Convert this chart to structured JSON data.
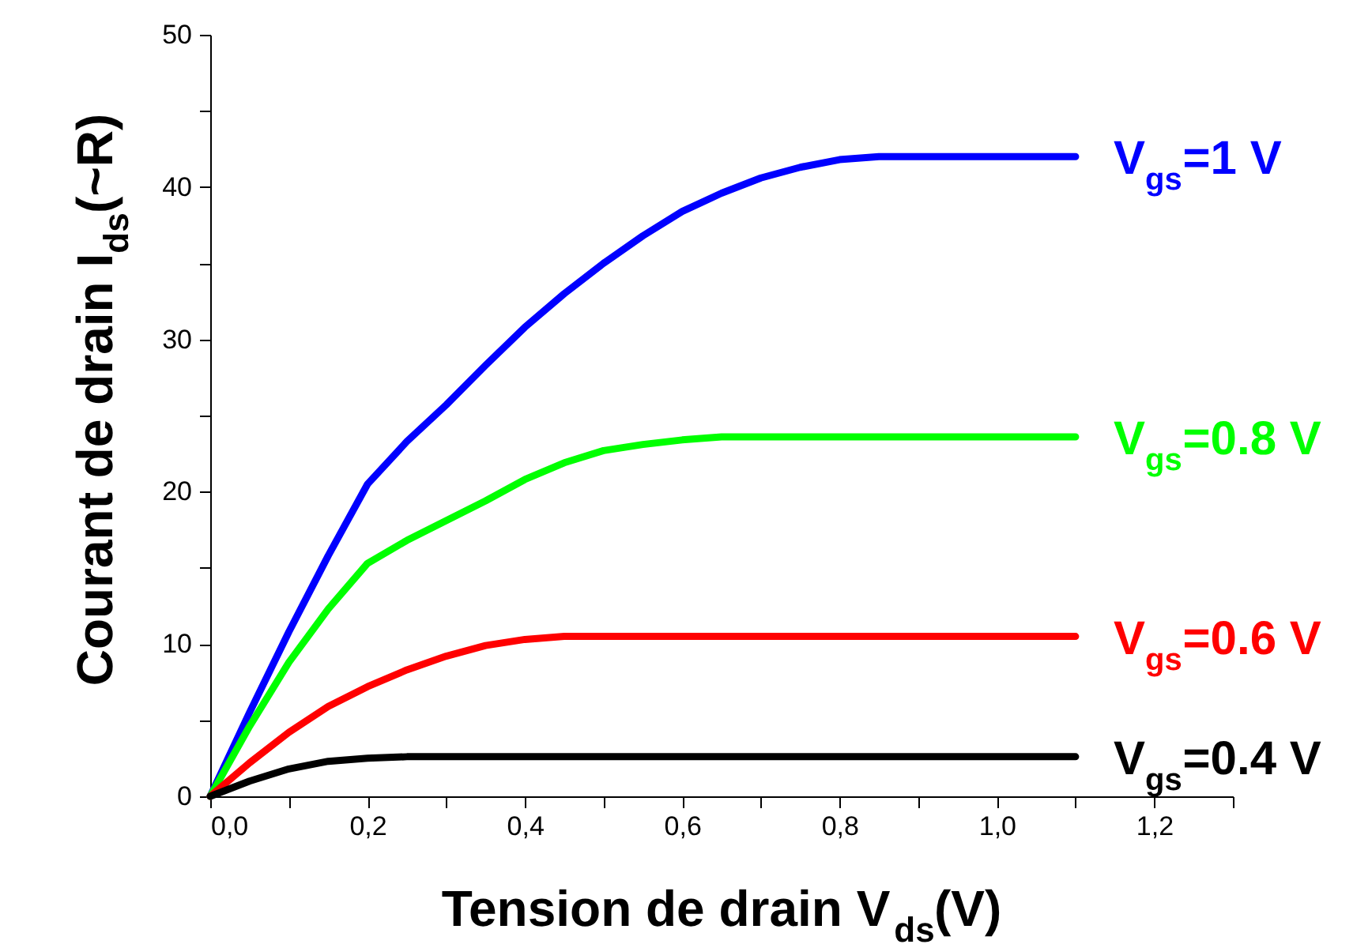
{
  "chart_data": {
    "type": "line",
    "xlabel": "Tension de drain V$_{ds}$(V)",
    "ylabel": "Courant de drain I$_{ds}$(~R)",
    "xlim": [
      0,
      1.3
    ],
    "ylim": [
      0,
      50
    ],
    "xticks": [
      {
        "value": 0,
        "label": "0,0"
      },
      {
        "value": 0.1,
        "label": null
      },
      {
        "value": 0.2,
        "label": "0,2"
      },
      {
        "value": 0.3,
        "label": null
      },
      {
        "value": 0.4,
        "label": "0,4"
      },
      {
        "value": 0.5,
        "label": null
      },
      {
        "value": 0.6,
        "label": "0,6"
      },
      {
        "value": 0.7,
        "label": null
      },
      {
        "value": 0.8,
        "label": "0,8"
      },
      {
        "value": 0.9,
        "label": null
      },
      {
        "value": 1.0,
        "label": "1,0"
      },
      {
        "value": 1.1,
        "label": null
      },
      {
        "value": 1.2,
        "label": "1,2"
      },
      {
        "value": 1.3,
        "label": null
      }
    ],
    "yticks": [
      0,
      {
        "value": 5,
        "label": null
      },
      10,
      {
        "value": 15,
        "label": null
      },
      20,
      {
        "value": 25,
        "label": null
      },
      30,
      {
        "value": 35,
        "label": null
      },
      40,
      {
        "value": 45,
        "label": null
      },
      50
    ],
    "grid": false,
    "series": [
      {
        "name": "V$_{gs}$=1 V",
        "color": "#0000ff",
        "x": [
          0,
          0.05,
          0.1,
          0.15,
          0.2,
          0.25,
          0.3,
          0.35,
          0.4,
          0.45,
          0.5,
          0.55,
          0.6,
          0.65,
          0.7,
          0.75,
          0.8,
          0.85,
          0.9,
          1.0,
          1.1
        ],
        "values": [
          0,
          5.5,
          10.8,
          15.8,
          20.5,
          23.3,
          25.7,
          28.3,
          30.8,
          33,
          35,
          36.8,
          38.4,
          39.6,
          40.6,
          41.3,
          41.8,
          42,
          42,
          42,
          42
        ]
      },
      {
        "name": "V$_{gs}$=0.8 V",
        "color": "#00ff00",
        "x": [
          0,
          0.05,
          0.1,
          0.15,
          0.2,
          0.25,
          0.3,
          0.35,
          0.4,
          0.45,
          0.5,
          0.55,
          0.6,
          0.65,
          0.7,
          0.8,
          0.9,
          1.0,
          1.1
        ],
        "values": [
          0,
          4.6,
          8.8,
          12.3,
          15.3,
          16.8,
          18.1,
          19.4,
          20.8,
          21.9,
          22.7,
          23.1,
          23.4,
          23.6,
          23.6,
          23.6,
          23.6,
          23.6,
          23.6
        ]
      },
      {
        "name": "V$_{gs}$=0.6 V",
        "color": "#ff0000",
        "x": [
          0,
          0.05,
          0.1,
          0.15,
          0.2,
          0.25,
          0.3,
          0.35,
          0.4,
          0.45,
          0.5,
          0.6,
          0.8,
          1.0,
          1.1
        ],
        "values": [
          0,
          2.2,
          4.2,
          5.9,
          7.2,
          8.3,
          9.2,
          9.9,
          10.3,
          10.5,
          10.5,
          10.5,
          10.5,
          10.5,
          10.5
        ]
      },
      {
        "name": "V$_{gs}$=0.4 V",
        "color": "#000000",
        "x": [
          0,
          0.05,
          0.1,
          0.15,
          0.2,
          0.25,
          0.3,
          0.5,
          0.8,
          1.1
        ],
        "values": [
          0,
          1.0,
          1.8,
          2.3,
          2.5,
          2.6,
          2.6,
          2.6,
          2.6,
          2.6
        ]
      }
    ]
  }
}
